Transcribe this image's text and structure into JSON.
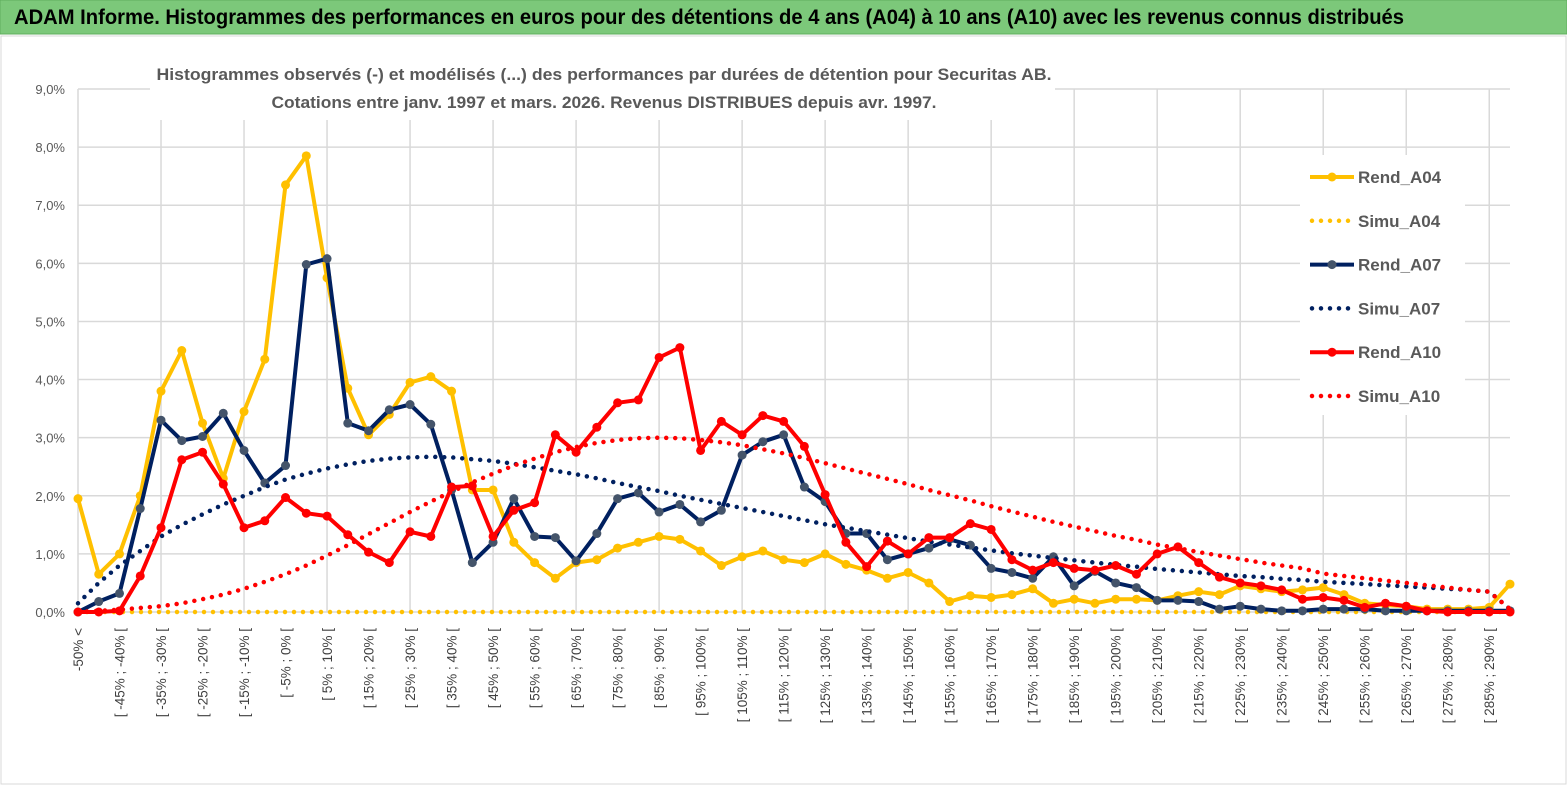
{
  "header": {
    "title": "ADAM Informe. Histogrammes des performances en euros pour des détentions de 4 ans (A04) à 10 ans (A10) avec les revenus connus distribués"
  },
  "chart_data": {
    "type": "line",
    "title_line1": "Histogrammes observés (-) et modélisés (...) des performances par durées de détention pour Securitas AB.",
    "title_line2": "Cotations entre janv. 1997 et mars. 2026. Revenus DISTRIBUES depuis avr. 1997.",
    "xlabel": "",
    "ylabel": "",
    "ylim": [
      0,
      9
    ],
    "y_ticks": [
      "0,0%",
      "1,0%",
      "2,0%",
      "3,0%",
      "4,0%",
      "5,0%",
      "6,0%",
      "7,0%",
      "8,0%",
      "9,0%"
    ],
    "n_points": 70,
    "x_tick_labels": [
      "-50% <",
      "[ -45% ; -40% [",
      "[ -35% ; -30% [",
      "[ -25% ; -20% [",
      "[ -15% ; -10% [",
      "[ -5% ; 0% [",
      "[ 5% ; 10% [",
      "[ 15% ; 20% [",
      "[ 25% ; 30% [",
      "[ 35% ; 40% [",
      "[ 45% ; 50% [",
      "[ 55% ; 60% [",
      "[ 65% ; 70% [",
      "[ 75% ; 80% [",
      "[ 85% ; 90% [",
      "[ 95% ; 100% [",
      "[ 105% ; 110% [",
      "[ 115% ; 120% [",
      "[ 125% ; 130% [",
      "[ 135% ; 140% [",
      "[ 145% ; 150% [",
      "[ 155% ; 160% [",
      "[ 165% ; 170% [",
      "[ 175% ; 180% [",
      "[ 185% ; 190% [",
      "[ 195% ; 200% [",
      "[ 205% ; 210% [",
      "[ 215% ; 220% [",
      "[ 225% ; 230% [",
      "[ 235% ; 240% [",
      "[ 245% ; 250% [",
      "[ 255% ; 260% [",
      "[ 265% ; 270% [",
      "[ 275% ; 280% [",
      "[ 285% ; 290% ["
    ],
    "x_tick_indices": [
      0,
      2,
      4,
      6,
      8,
      10,
      12,
      14,
      16,
      18,
      20,
      22,
      24,
      26,
      28,
      30,
      32,
      34,
      36,
      38,
      40,
      42,
      44,
      46,
      48,
      50,
      52,
      54,
      56,
      58,
      60,
      62,
      64,
      66,
      68
    ],
    "grid": true,
    "legend_position": "right",
    "series": [
      {
        "name": "Rend_A04",
        "style": "solid",
        "color": "#ffc000",
        "marker_color": "#ffc000",
        "values": [
          1.95,
          0.65,
          1.0,
          2.0,
          3.8,
          4.5,
          3.25,
          2.3,
          3.45,
          4.35,
          7.35,
          7.85,
          5.75,
          3.85,
          3.05,
          3.4,
          3.95,
          4.05,
          3.8,
          2.1,
          2.1,
          1.2,
          0.85,
          0.58,
          0.85,
          0.9,
          1.1,
          1.2,
          1.3,
          1.25,
          1.05,
          0.8,
          0.95,
          1.05,
          0.9,
          0.85,
          1.0,
          0.82,
          0.72,
          0.58,
          0.68,
          0.5,
          0.18,
          0.28,
          0.25,
          0.3,
          0.4,
          0.15,
          0.22,
          0.15,
          0.22,
          0.22,
          0.2,
          0.28,
          0.35,
          0.3,
          0.45,
          0.4,
          0.35,
          0.38,
          0.42,
          0.3,
          0.15,
          0.12,
          0.1,
          0.05,
          0.05,
          0.05,
          0.08,
          0.48
        ]
      },
      {
        "name": "Simu_A04",
        "style": "dotted",
        "color": "#ffc000",
        "values": [
          0,
          0,
          0,
          0,
          0,
          0,
          0,
          0,
          0,
          0,
          0,
          0,
          0,
          0,
          0,
          0,
          0,
          0,
          0,
          0,
          0,
          0,
          0,
          0,
          0,
          0,
          0,
          0,
          0,
          0,
          0,
          0,
          0,
          0,
          0,
          0,
          0,
          0,
          0,
          0,
          0,
          0,
          0,
          0,
          0,
          0,
          0,
          0,
          0,
          0,
          0,
          0,
          0,
          0,
          0,
          0,
          0,
          0,
          0,
          0,
          0,
          0,
          0,
          0,
          0,
          0,
          0,
          0,
          0,
          0
        ]
      },
      {
        "name": "Rend_A07",
        "style": "solid",
        "color": "#002060",
        "marker_color": "#44546a",
        "values": [
          0,
          0.18,
          0.32,
          1.78,
          3.3,
          2.95,
          3.02,
          3.42,
          2.78,
          2.22,
          2.52,
          5.98,
          6.08,
          3.25,
          3.12,
          3.48,
          3.57,
          3.23,
          2.1,
          0.85,
          1.2,
          1.95,
          1.3,
          1.28,
          0.88,
          1.35,
          1.95,
          2.05,
          1.72,
          1.85,
          1.55,
          1.75,
          2.7,
          2.93,
          3.05,
          2.15,
          1.9,
          1.35,
          1.35,
          0.9,
          1.0,
          1.1,
          1.25,
          1.15,
          0.75,
          0.68,
          0.58,
          0.95,
          0.45,
          0.7,
          0.5,
          0.42,
          0.2,
          0.2,
          0.18,
          0.05,
          0.1,
          0.05,
          0.02,
          0.02,
          0.05,
          0.05,
          0.05,
          0.02,
          0.02,
          0.02,
          0.02,
          0.02,
          0.02,
          0.02
        ]
      },
      {
        "name": "Simu_A07",
        "style": "dotted",
        "color": "#002060",
        "values": [
          0.15,
          0.5,
          0.8,
          1.05,
          1.3,
          1.5,
          1.68,
          1.85,
          2.0,
          2.15,
          2.28,
          2.38,
          2.47,
          2.54,
          2.6,
          2.64,
          2.66,
          2.67,
          2.66,
          2.63,
          2.6,
          2.55,
          2.49,
          2.43,
          2.37,
          2.3,
          2.22,
          2.15,
          2.08,
          2.0,
          1.93,
          1.86,
          1.79,
          1.72,
          1.65,
          1.58,
          1.51,
          1.45,
          1.39,
          1.33,
          1.27,
          1.21,
          1.16,
          1.11,
          1.06,
          1.01,
          0.97,
          0.93,
          0.89,
          0.85,
          0.81,
          0.78,
          0.74,
          0.71,
          0.68,
          0.65,
          0.62,
          0.6,
          0.57,
          0.55,
          0.52,
          0.5,
          0.48,
          0.46,
          0.44,
          0.42,
          0.4,
          0.38,
          0.35,
          0.05
        ]
      },
      {
        "name": "Rend_A10",
        "style": "solid",
        "color": "#ff0000",
        "marker_color": "#ff0000",
        "values": [
          0,
          0,
          0.02,
          0.62,
          1.45,
          2.62,
          2.75,
          2.2,
          1.45,
          1.57,
          1.97,
          1.7,
          1.65,
          1.33,
          1.03,
          0.85,
          1.38,
          1.3,
          2.15,
          2.17,
          1.3,
          1.75,
          1.88,
          3.05,
          2.75,
          3.18,
          3.6,
          3.65,
          4.38,
          4.55,
          2.78,
          3.28,
          3.05,
          3.38,
          3.28,
          2.85,
          2.02,
          1.2,
          0.78,
          1.22,
          1.0,
          1.28,
          1.28,
          1.52,
          1.42,
          0.9,
          0.72,
          0.85,
          0.75,
          0.72,
          0.8,
          0.65,
          1.0,
          1.12,
          0.85,
          0.6,
          0.5,
          0.45,
          0.38,
          0.22,
          0.25,
          0.2,
          0.08,
          0.15,
          0.1,
          0.02,
          0,
          0,
          0,
          0
        ]
      },
      {
        "name": "Simu_A10",
        "style": "dotted",
        "color": "#ff0000",
        "values": [
          0,
          0.02,
          0.04,
          0.07,
          0.1,
          0.15,
          0.22,
          0.3,
          0.4,
          0.52,
          0.65,
          0.8,
          0.97,
          1.15,
          1.34,
          1.53,
          1.72,
          1.9,
          2.07,
          2.23,
          2.38,
          2.52,
          2.64,
          2.75,
          2.84,
          2.91,
          2.96,
          2.99,
          3.0,
          2.99,
          2.96,
          2.92,
          2.87,
          2.8,
          2.73,
          2.65,
          2.56,
          2.47,
          2.38,
          2.29,
          2.2,
          2.1,
          2.01,
          1.92,
          1.82,
          1.73,
          1.64,
          1.55,
          1.47,
          1.39,
          1.31,
          1.24,
          1.16,
          1.1,
          1.03,
          0.97,
          0.91,
          0.85,
          0.8,
          0.75,
          0.66,
          0.62,
          0.58,
          0.54,
          0.5,
          0.46,
          0.42,
          0.38,
          0.35,
          0.05
        ]
      }
    ]
  }
}
